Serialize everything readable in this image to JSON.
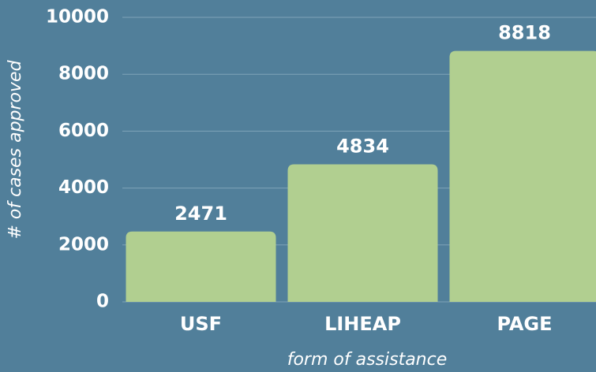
{
  "chart_data": {
    "type": "bar",
    "xlabel": "form of assistance",
    "ylabel": "# of cases approved",
    "categories": [
      "USF",
      "LIHEAP",
      "PAGE"
    ],
    "values": [
      2471,
      4834,
      8818
    ],
    "color": "#b1cf90",
    "ylim": [
      0,
      10000
    ],
    "yticks": [
      0,
      2000,
      4000,
      6000,
      8000,
      10000
    ],
    "grid": true
  }
}
